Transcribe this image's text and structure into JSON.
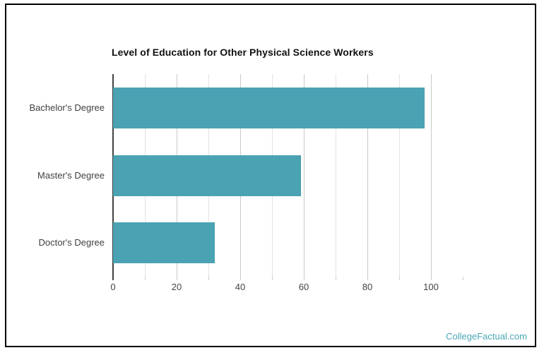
{
  "watermark": {
    "text": "CollegeFactual.com"
  },
  "colors": {
    "bar": "#4AA2B2",
    "watermark": "#4AA6B5",
    "axis_line": "#424242",
    "gridline_major": "#C9C9C9",
    "gridline_minor": "#E3E3E3",
    "tick_label": "#444444",
    "category_label": "#404040",
    "title": "#111111",
    "frame_border": "#000000"
  },
  "chart_data": {
    "type": "bar",
    "orientation": "horizontal",
    "title": "Level of Education for Other Physical Science Workers",
    "categories": [
      "Bachelor's Degree",
      "Master's Degree",
      "Doctor's Degree"
    ],
    "values": [
      98,
      59,
      32
    ],
    "xlabel": "",
    "ylabel": "",
    "xlim": [
      0,
      110
    ],
    "x_tick_labels": [
      0,
      20,
      40,
      60,
      80,
      100
    ],
    "gridline_step": 10,
    "gridline_max": 100,
    "grid": true,
    "legend": "none",
    "bar_color": "#4AA2B2"
  }
}
